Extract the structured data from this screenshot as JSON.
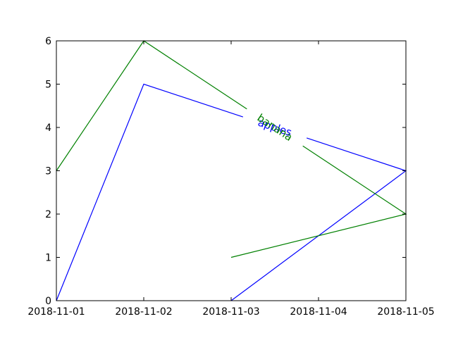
{
  "chart_data": {
    "type": "line",
    "title": "",
    "xlabel": "",
    "ylabel": "",
    "x_ticks": [
      "2018-11-01",
      "2018-11-02",
      "2018-11-03",
      "2018-11-04",
      "2018-11-05"
    ],
    "x_range": [
      "2018-11-01",
      "2018-11-05"
    ],
    "ylim": [
      0,
      6
    ],
    "y_ticks": [
      0,
      1,
      2,
      3,
      4,
      5,
      6
    ],
    "grid": false,
    "series": [
      {
        "name": "apples",
        "color": "#0000ff",
        "points": [
          {
            "x": "2018-11-01",
            "y": 0
          },
          {
            "x": "2018-11-02",
            "y": 5
          },
          {
            "x": "2018-11-05",
            "y": 3
          },
          {
            "x": "2018-11-03",
            "y": 0
          }
        ],
        "inline_label_on_segment": 1
      },
      {
        "name": "banana",
        "color": "#008000",
        "points": [
          {
            "x": "2018-11-01",
            "y": 3
          },
          {
            "x": "2018-11-02",
            "y": 6
          },
          {
            "x": "2018-11-05",
            "y": 2
          },
          {
            "x": "2018-11-03",
            "y": 1
          }
        ],
        "inline_label_on_segment": 1
      }
    ]
  }
}
